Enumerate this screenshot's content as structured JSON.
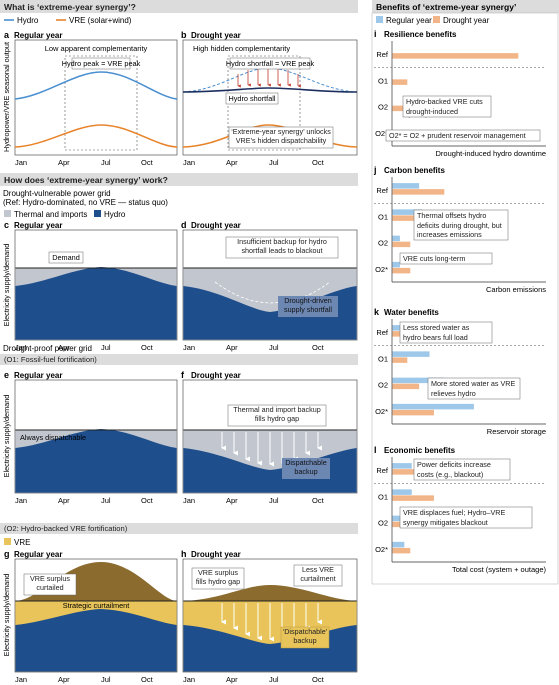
{
  "colors": {
    "hydro": "#1f4e8c",
    "vre": "#e8832a",
    "thermal": "#c2c7cf",
    "vre_fill": "#e8c45a",
    "vre_dark": "#8b6b2e",
    "bar_hydro": "#9dc8ea",
    "bar_drought": "#f2b587",
    "header": "#dcdcdc",
    "red": "#c0392b"
  },
  "title1": "What is ‘extreme-year synergy’?",
  "legend1": {
    "hydro": "Hydro",
    "vre": "VRE (solar+wind)"
  },
  "panel_a": {
    "letter": "a",
    "title": "Regular year",
    "note": "Low apparent complementarity",
    "box": "Hydro peak = VRE peak"
  },
  "panel_b": {
    "letter": "b",
    "title": "Drought year",
    "note": "High hidden complementarity",
    "box": "Hydro shortfall = VRE peak",
    "label": "Hydro shortfall",
    "box2": "‘Extreme-year synergy’ unlocks VRE’s hidden dispatchability"
  },
  "ylabel_ab": "Hydropower/VRE seasonal output",
  "months": [
    "Jan",
    "Apr",
    "Jul",
    "Oct"
  ],
  "title2": "How does ‘extreme-year synergy’ work?",
  "sub2a": "Drought-vulnerable power grid",
  "sub2b": "(Ref: Hydro-dominated, no VRE — status quo)",
  "legend2": {
    "thermal": "Thermal and imports",
    "hydro": "Hydro"
  },
  "panel_c": {
    "letter": "c",
    "title": "Regular year",
    "label": "Demand"
  },
  "panel_d": {
    "letter": "d",
    "title": "Drought year",
    "box": "Insufficient backup for hydro shortfall leads to blackout",
    "box2": "Drought-driven supply shortfall"
  },
  "ylabel_ch": "Electricity supply/demand",
  "sub3a": "Drought-proof power grid",
  "sub3b": "(O1: Fossil-fuel fortification)",
  "panel_e": {
    "letter": "e",
    "title": "Regular year",
    "label": "Always dispatchable"
  },
  "panel_f": {
    "letter": "f",
    "title": "Drought year",
    "box": "Thermal and import backup fills hydro gap",
    "box2": "Dispatchable backup"
  },
  "sub4": "(O2: Hydro-backed VRE fortification)",
  "legend4": {
    "vre": "VRE"
  },
  "panel_g": {
    "letter": "g",
    "title": "Regular year",
    "box": "VRE surplus curtailed",
    "label": "Strategic curtailment"
  },
  "panel_h": {
    "letter": "h",
    "title": "Drought year",
    "box": "VRE surplus fills hydro gap",
    "box2": "Less VRE curtailment",
    "box3": "‘Dispatchable’ backup"
  },
  "right_title": "Benefits of ‘extreme-year synergy’",
  "legend_right": {
    "regular": "Regular year",
    "drought": "Drought year"
  },
  "scenarios": [
    "Ref",
    "O1",
    "O2",
    "O2*"
  ],
  "panel_i": {
    "letter": "i",
    "title": "Resilience benefits",
    "xlabel": "Drought-induced hydro downtime",
    "note1": "Hydro-backed VRE cuts drought-induced downtime",
    "note2": "O2* = O2 + prudent reservoir management",
    "regular": [
      0,
      0,
      0,
      0
    ],
    "drought": [
      0.85,
      0.1,
      0.3,
      0.1
    ]
  },
  "panel_j": {
    "letter": "j",
    "title": "Carbon benefits",
    "xlabel": "Carbon emissions",
    "note1": "Thermal offsets hydro deficits during drought, but increases emissions",
    "note2": "VRE cuts long-term emissions",
    "regular": [
      0.18,
      0.2,
      0.05,
      0.05
    ],
    "drought": [
      0.35,
      0.5,
      0.12,
      0.12
    ]
  },
  "panel_k": {
    "letter": "k",
    "title": "Water benefits",
    "xlabel": "Reservoir storage",
    "note1": "Less stored water as hydro bears full load",
    "note2": "More stored water as VRE relieves hydro",
    "regular": [
      0.3,
      0.25,
      0.35,
      0.55
    ],
    "drought": [
      0.08,
      0.1,
      0.18,
      0.28
    ]
  },
  "panel_l": {
    "letter": "l",
    "title": "Economic benefits",
    "xlabel": "Total cost (system + outage)",
    "note1": "Power deficits increase costs (e.g., blackout)",
    "note2": "VRE displaces fuel; Hydro–VRE synergy mitigates blackout",
    "regular": [
      0.13,
      0.13,
      0.08,
      0.08
    ],
    "drought": [
      0.4,
      0.28,
      0.12,
      0.12
    ]
  }
}
